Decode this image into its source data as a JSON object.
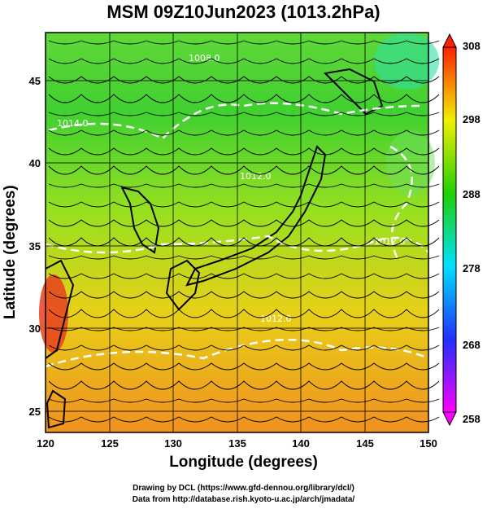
{
  "title": "MSM 09Z10Jun2023 (1013.2hPa)",
  "xlabel": "Longitude (degrees)",
  "ylabel": "Latitude  (degrees)",
  "credits": {
    "line1": "Drawing by DCL (https://www.gfd-dennou.org/library/dcl/)",
    "line2": "Data from http://database.rish.kyoto-u.ac.jp/arch/jmadata/"
  },
  "chart_data": {
    "type": "map",
    "x_ticks": [
      120,
      125,
      130,
      135,
      140,
      145,
      150
    ],
    "y_ticks": [
      25,
      30,
      35,
      40,
      45
    ],
    "xlim": [
      120,
      150
    ],
    "ylim": [
      22.5,
      47.5
    ],
    "colorbar": {
      "ticks": [
        258,
        268,
        278,
        288,
        298,
        308
      ],
      "range": [
        258,
        308
      ],
      "colors": [
        "#ff00ff",
        "#2030ff",
        "#00e0ff",
        "#20d000",
        "#f0f000",
        "#ff2000"
      ]
    },
    "contour_labels": [
      "1008.0",
      "1012.0",
      "1012.0",
      "1014.0",
      "1012.0"
    ]
  }
}
